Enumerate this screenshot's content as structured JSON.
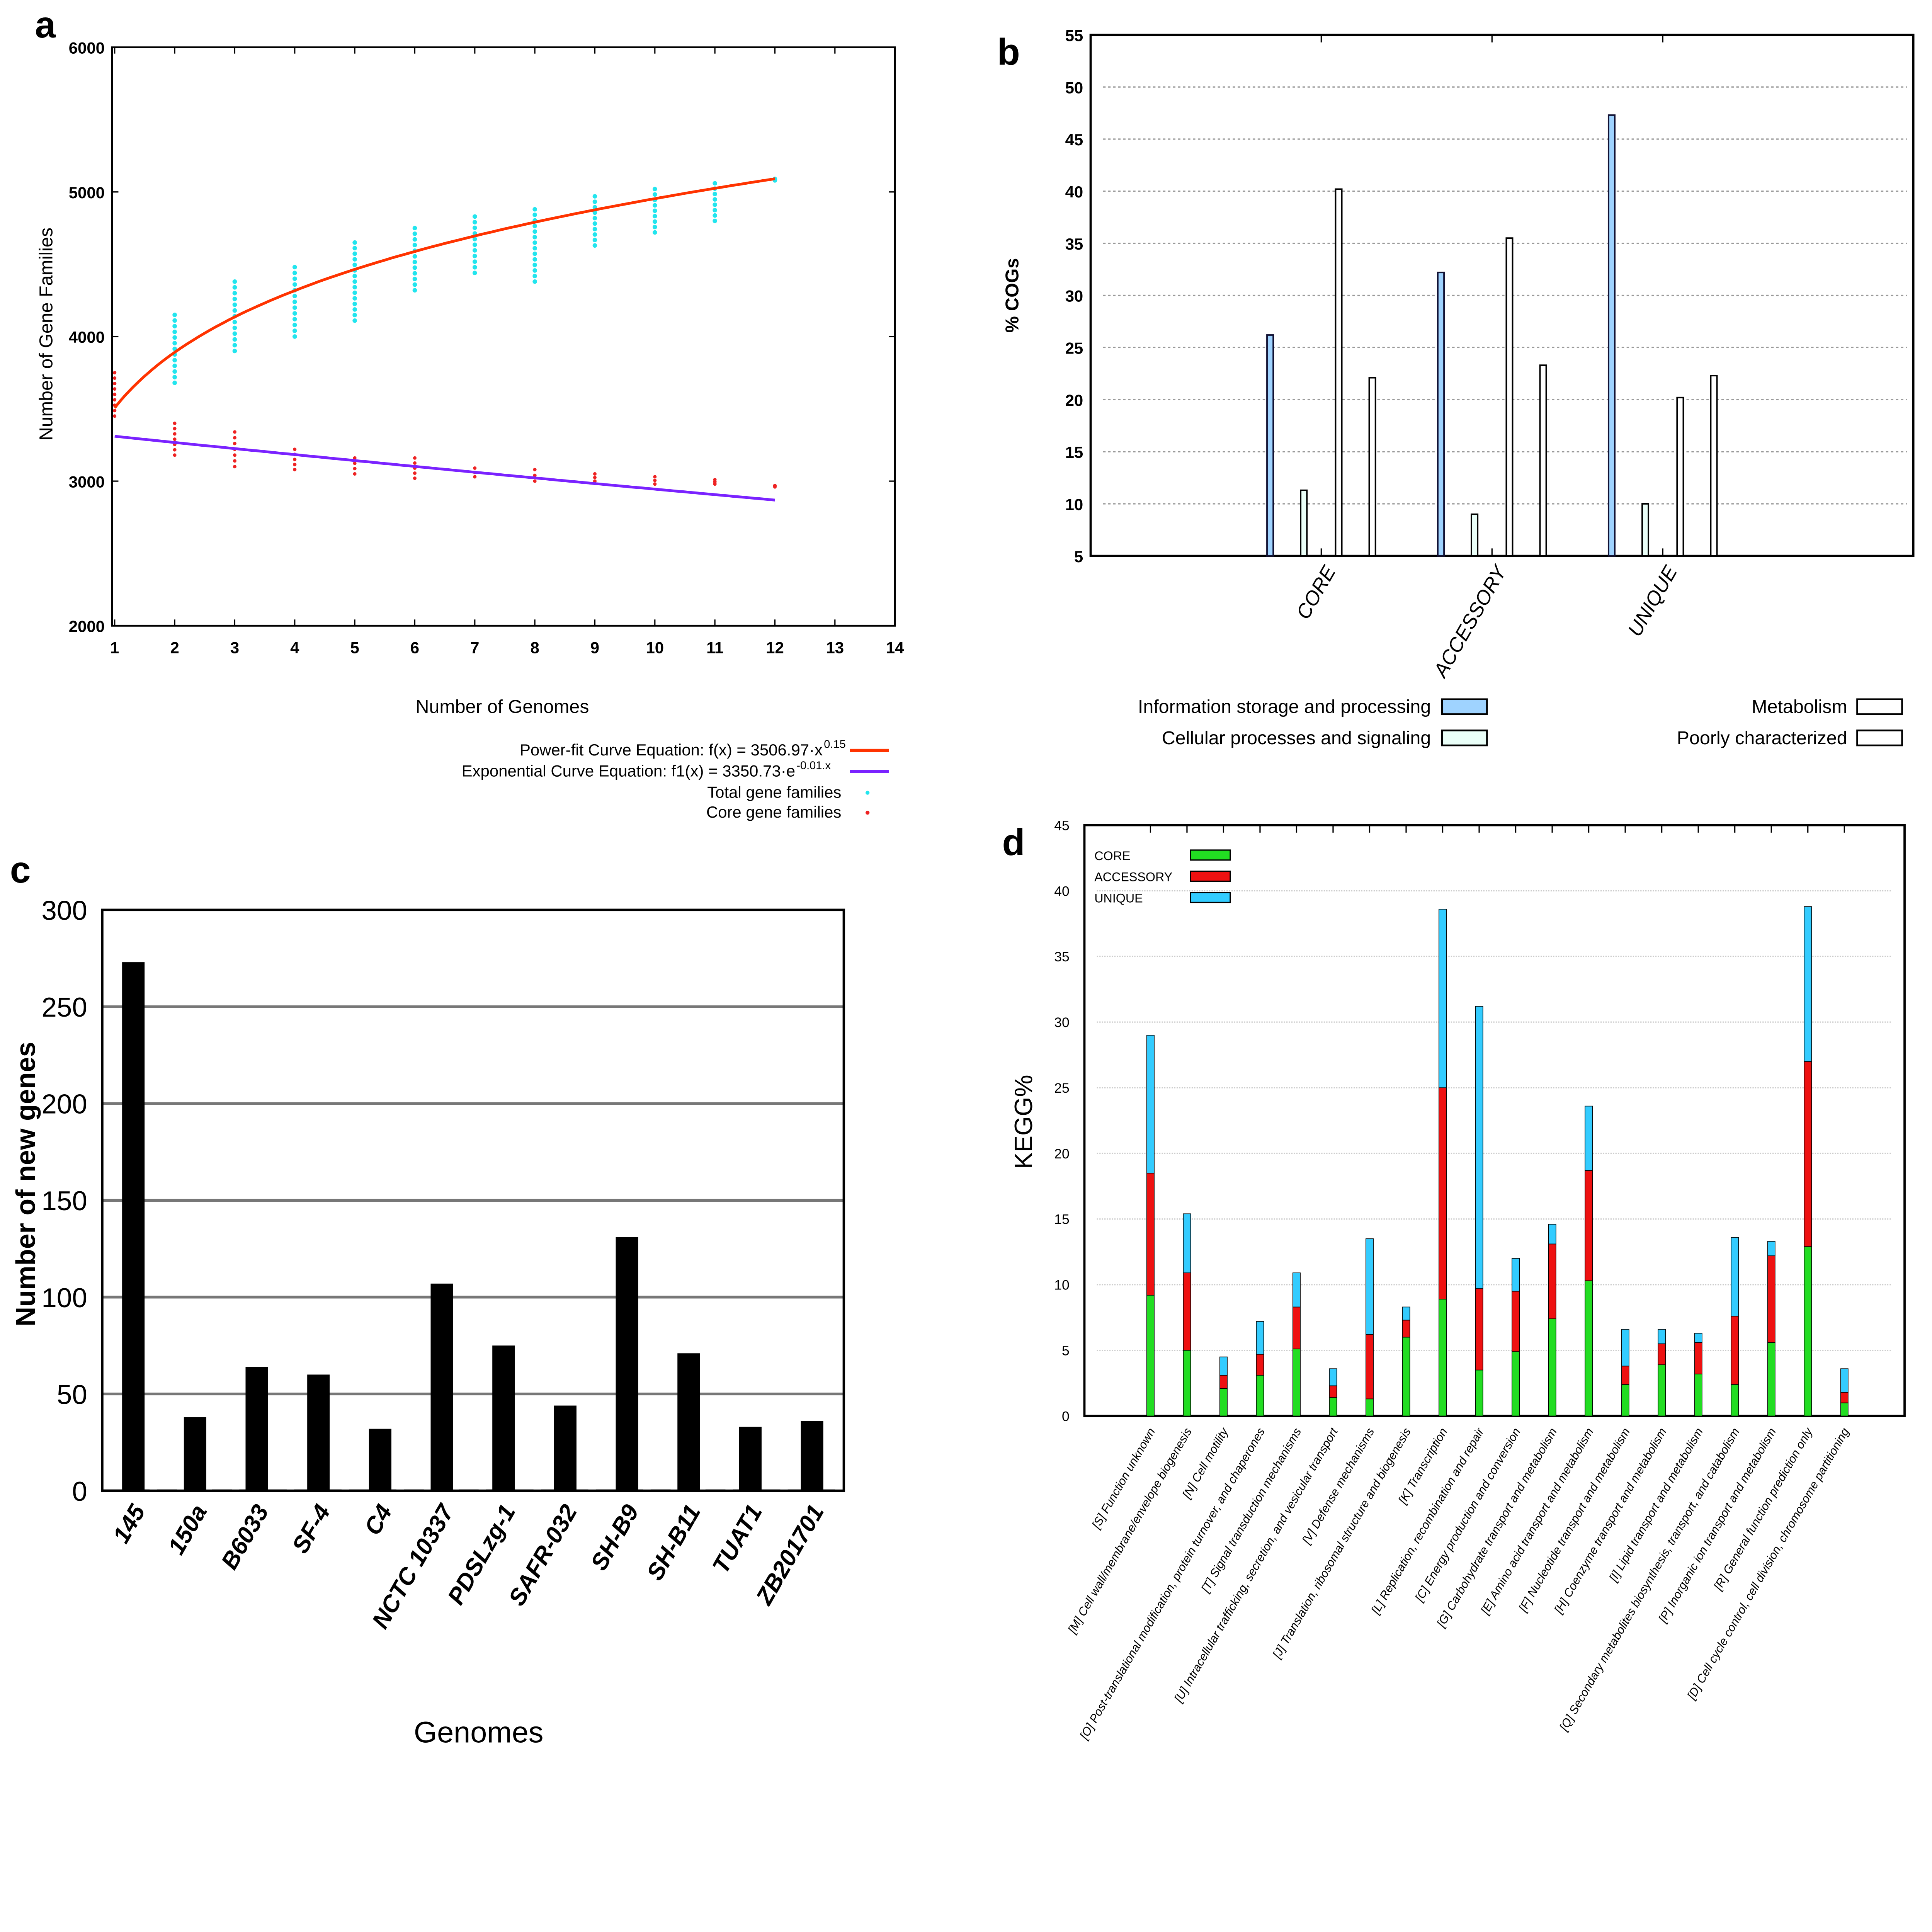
{
  "chart_data": [
    {
      "panel": "a",
      "type": "scatter",
      "xlabel": "Number of Genomes",
      "ylabel": "Number of Gene Families",
      "xlim": [
        1,
        14
      ],
      "ylim": [
        2000,
        6000
      ],
      "xticks": [
        "1",
        "2",
        "3",
        "4",
        "5",
        "6",
        "7",
        "8",
        "9",
        "10",
        "11",
        "12",
        "13",
        "14"
      ],
      "yticks": [
        "2000",
        "3000",
        "4000",
        "5000",
        "6000"
      ],
      "fits": [
        {
          "name": "Power-fit Curve Equation: f(x) = 3506.97·x",
          "sup": "0.15",
          "a": 3506.97,
          "b": 0.15,
          "kind": "power",
          "color": "#ff3300"
        },
        {
          "name": "Exponential Curve Equation:   f1(x) = 3350.73·e",
          "sup": "-0.01.x",
          "a": 3350.73,
          "b": -0.013,
          "kind": "exp",
          "color": "#7a22ff"
        }
      ],
      "series": [
        {
          "name": "Total gene families",
          "color": "#22e5ee",
          "ranges": [
            [
              2,
              3680,
              4150
            ],
            [
              3,
              3900,
              4380
            ],
            [
              4,
              4000,
              4480
            ],
            [
              5,
              4110,
              4650
            ],
            [
              6,
              4320,
              4750
            ],
            [
              7,
              4440,
              4830
            ],
            [
              8,
              4380,
              4880
            ],
            [
              9,
              4630,
              4970
            ],
            [
              10,
              4720,
              5020
            ],
            [
              11,
              4800,
              5060
            ],
            [
              12,
              5080,
              5090
            ]
          ]
        },
        {
          "name": "Core gene families",
          "color": "#ee2222",
          "ranges": [
            [
              1,
              3450,
              3750
            ],
            [
              2,
              3180,
              3400
            ],
            [
              3,
              3100,
              3340
            ],
            [
              4,
              3080,
              3220
            ],
            [
              5,
              3050,
              3160
            ],
            [
              6,
              3020,
              3160
            ],
            [
              7,
              3030,
              3090
            ],
            [
              8,
              3000,
              3080
            ],
            [
              9,
              3000,
              3050
            ],
            [
              10,
              2980,
              3030
            ],
            [
              11,
              2980,
              3010
            ],
            [
              12,
              2960,
              2970
            ]
          ]
        }
      ]
    },
    {
      "panel": "b",
      "type": "bar",
      "ylabel": "% COGs",
      "ylim": [
        5,
        55
      ],
      "yticks": [
        "5",
        "10",
        "15",
        "20",
        "25",
        "30",
        "35",
        "40",
        "45",
        "50",
        "55"
      ],
      "categories": [
        "CORE",
        "ACCESSORY",
        "UNIQUE"
      ],
      "series": [
        {
          "name": "Information storage and processing",
          "color": "#9fd3ff",
          "values": [
            26.2,
            32.2,
            47.3
          ]
        },
        {
          "name": "Cellular processes and signaling",
          "color": "#eafff8",
          "values": [
            11.3,
            9.0,
            10.0
          ]
        },
        {
          "name": "Metabolism",
          "color": "#ffffff",
          "values": [
            40.2,
            35.5,
            20.2
          ]
        },
        {
          "name": "Poorly characterized",
          "color": "#ffffff",
          "values": [
            22.1,
            23.3,
            22.3
          ]
        }
      ]
    },
    {
      "panel": "c",
      "type": "bar",
      "xlabel": "Genomes",
      "ylabel": "Number of new genes",
      "ylim": [
        0,
        300
      ],
      "yticks": [
        "0",
        "50",
        "100",
        "150",
        "200",
        "250",
        "300"
      ],
      "categories": [
        "145",
        "150a",
        "B6033",
        "SF-4",
        "C4",
        "NCTC 10337",
        "PDSLzg-1",
        "SAFR-032",
        "SH-B9",
        "SH-B11",
        "TUAT1",
        "ZB201701"
      ],
      "values": [
        273,
        38,
        64,
        60,
        32,
        107,
        75,
        44,
        131,
        71,
        33,
        36
      ]
    },
    {
      "panel": "d",
      "type": "bar",
      "stacked": true,
      "ylabel": "KEGG%",
      "ylim": [
        0,
        45
      ],
      "yticks": [
        "0",
        "5",
        "10",
        "15",
        "20",
        "25",
        "30",
        "35",
        "40",
        "45"
      ],
      "categories": [
        "[S] Function unknown",
        "[M] Cell wall/membrane/envelope biogenesis",
        "[N] Cell motility",
        "[O] Post-translational modification, protein turnover, and chaperones",
        "[T] Signal transduction mechanisms",
        "[U] Intracellular trafficking, secretion, and vesicular transport",
        "[V] Defense mechanisms",
        "[J] Translation, ribosomal structure and biogenesis",
        "[K] Transcription",
        "[L] Replication, recombination and repair",
        "[C] Energy production and conversion",
        "[G] Carbohydrate transport and metabolism",
        "[E] Amino acid transport and metabolism",
        "[F] Nucleotide transport and metabolism",
        "[H] Coenzyme transport and metabolism",
        "[I] Lipid transport and metabolism",
        "[Q] Secondary metabolites biosynthesis, transport, and catabolism",
        "[P] Inorganic ion transport and metabolism",
        "[R] General function prediction only",
        "[D] Cell cycle control, cell division, chromosome partitioning"
      ],
      "series": [
        {
          "name": "CORE",
          "color": "#22dd22",
          "values": [
            9.2,
            5.0,
            2.1,
            3.1,
            5.1,
            1.4,
            1.3,
            6.0,
            8.9,
            3.5,
            4.9,
            7.4,
            10.3,
            2.4,
            3.9,
            3.2,
            2.4,
            5.6,
            12.9,
            1.0
          ]
        },
        {
          "name": "ACCESSORY",
          "color": "#ee1111",
          "values": [
            9.3,
            5.9,
            1.0,
            1.6,
            3.2,
            0.9,
            4.9,
            1.3,
            16.1,
            6.2,
            4.6,
            5.7,
            8.4,
            1.4,
            1.6,
            2.4,
            5.2,
            6.6,
            14.1,
            0.8
          ]
        },
        {
          "name": "UNIQUE",
          "color": "#33ccff",
          "values": [
            10.5,
            4.5,
            1.4,
            2.5,
            2.6,
            1.3,
            7.3,
            1.0,
            13.6,
            21.5,
            2.5,
            1.5,
            4.9,
            2.8,
            1.1,
            0.7,
            6.0,
            1.1,
            11.8,
            1.8
          ]
        }
      ]
    }
  ],
  "panels": {
    "a": "a",
    "b": "b",
    "c": "c",
    "d": "d"
  }
}
